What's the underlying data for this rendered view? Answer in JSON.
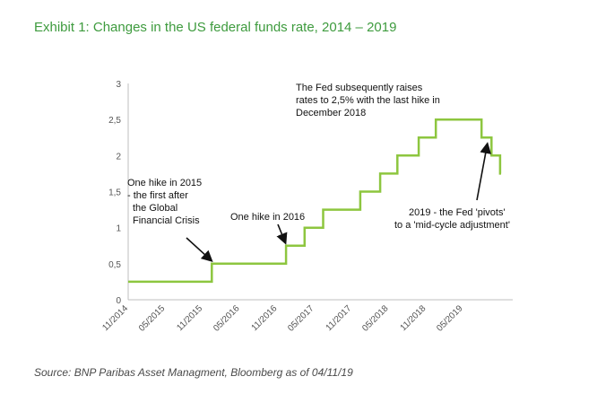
{
  "page": {
    "title": "Exhibit 1: Changes in the US federal funds rate, 2014 – 2019",
    "source": "Source: BNP Paribas Asset Managment, Bloomberg as of 04/11/19"
  },
  "chart_data": {
    "type": "line",
    "title": "",
    "xlabel": "",
    "ylabel": "",
    "line_color": "#8dc63f",
    "grid": false,
    "legend": "none",
    "step": true,
    "ylim": [
      0,
      3
    ],
    "xlim": [
      "2014-11-01",
      "2019-12-31"
    ],
    "yticks": [
      "0",
      "0,5",
      "1",
      "1,5",
      "2",
      "2,5",
      "3"
    ],
    "yticks_values": [
      0,
      0.5,
      1,
      1.5,
      2,
      2.5,
      3
    ],
    "xticks": [
      "11/2014",
      "05/2015",
      "11/2015",
      "05/2016",
      "11/2016",
      "05/2017",
      "11/2017",
      "05/2018",
      "11/2018",
      "05/2019"
    ],
    "xticks_dates": [
      "2014-11-01",
      "2015-05-01",
      "2015-11-01",
      "2016-05-01",
      "2016-11-01",
      "2017-05-01",
      "2017-11-01",
      "2018-05-01",
      "2018-11-01",
      "2019-05-01"
    ],
    "series": [
      {
        "dates": [
          "2014-11-01",
          "2015-12-16",
          "2016-12-14",
          "2017-03-15",
          "2017-06-14",
          "2017-12-13",
          "2018-03-21",
          "2018-06-13",
          "2018-09-26",
          "2018-12-19",
          "2019-07-31",
          "2019-09-18",
          "2019-10-30",
          "2019-11-04"
        ],
        "values": [
          0.25,
          0.5,
          0.75,
          1.0,
          1.25,
          1.5,
          1.75,
          2.0,
          2.25,
          2.5,
          2.25,
          2.0,
          1.75,
          1.75
        ]
      }
    ],
    "annotations": [
      {
        "lines": [
          "One hike in 2015",
          "- the first after",
          "the Global",
          "Financial Crisis"
        ],
        "target_date": "2015-12-16",
        "target_value": 0.5
      },
      {
        "lines": [
          "One hike in 2016"
        ],
        "target_date": "2016-12-14",
        "target_value": 0.75
      },
      {
        "lines": [
          "The Fed subsequently raises",
          "rates to 2,5% with the last hike in",
          "December 2018"
        ]
      },
      {
        "lines": [
          "2019 - the Fed 'pivots'",
          "to a 'mid-cycle adjustment'"
        ],
        "target_date": "2019-09-01",
        "target_value": 2.1
      }
    ]
  }
}
